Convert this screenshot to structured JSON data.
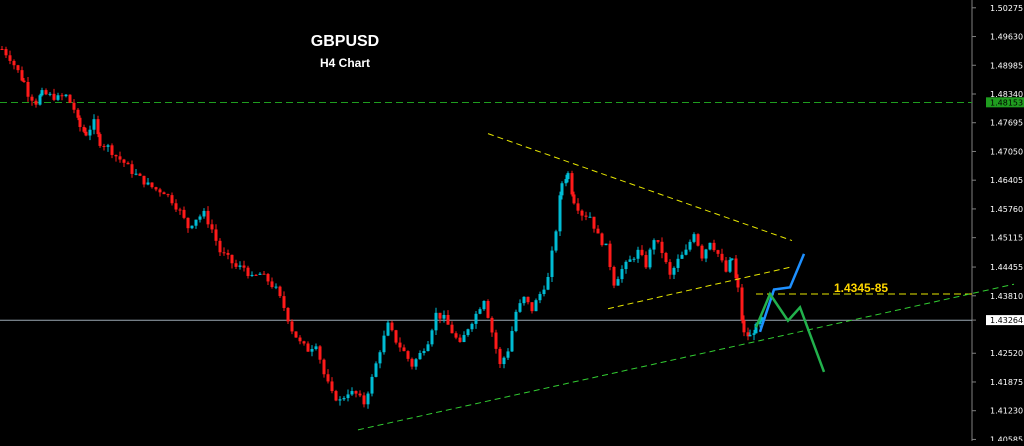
{
  "chart_data": {
    "type": "candlestick",
    "title": "GBPUSD",
    "subtitle": "H4 Chart",
    "symbol": "GBPUSD",
    "timeframe": "H4",
    "y_axis": {
      "position": "right",
      "tick_labels": [
        "1.50275",
        "1.49630",
        "1.48985",
        "1.48340",
        "1.47695",
        "1.47050",
        "1.46405",
        "1.45760",
        "1.45115",
        "1.44455",
        "1.43810",
        "1.43264",
        "1.42520",
        "1.41875",
        "1.41230",
        "1.40585"
      ],
      "ylim": [
        1.4055,
        1.5045
      ]
    },
    "grid": false,
    "current_price": "1.43264",
    "marked_level": "1.48153",
    "annotation": "1.4345-85",
    "colors": {
      "background": "#000000",
      "bull_candle": "#00bcd4",
      "bear_candle": "#ff1a1a",
      "triangle_lines": "#e6e600",
      "support_line": "#32cd32",
      "resistance_level": "#1f9d1f",
      "bullish_scenario": "#1e90ff",
      "bearish_scenario": "#22b14c",
      "annotation_text": "#ffd700",
      "axis_text": "#ffffff"
    },
    "series": [
      {
        "kind": "candles",
        "close_path": [
          [
            0,
            1.4935
          ],
          [
            8,
            1.4915
          ],
          [
            16,
            1.4885
          ],
          [
            22,
            1.486
          ],
          [
            26,
            1.4835
          ],
          [
            34,
            1.4815
          ],
          [
            40,
            1.4835
          ],
          [
            48,
            1.483
          ],
          [
            56,
            1.4825
          ],
          [
            64,
            1.483
          ],
          [
            72,
            1.48
          ],
          [
            78,
            1.476
          ],
          [
            84,
            1.4745
          ],
          [
            92,
            1.477
          ],
          [
            98,
            1.4725
          ],
          [
            106,
            1.4715
          ],
          [
            114,
            1.4695
          ],
          [
            122,
            1.468
          ],
          [
            130,
            1.466
          ],
          [
            138,
            1.4645
          ],
          [
            146,
            1.463
          ],
          [
            154,
            1.462
          ],
          [
            162,
            1.4615
          ],
          [
            170,
            1.4595
          ],
          [
            178,
            1.457
          ],
          [
            186,
            1.4535
          ],
          [
            194,
            1.4555
          ],
          [
            202,
            1.4565
          ],
          [
            210,
            1.453
          ],
          [
            218,
            1.448
          ],
          [
            226,
            1.4465
          ],
          [
            234,
            1.4445
          ],
          [
            242,
            1.4445
          ],
          [
            250,
            1.442
          ],
          [
            258,
            1.443
          ],
          [
            266,
            1.4415
          ],
          [
            274,
            1.4395
          ],
          [
            282,
            1.4355
          ],
          [
            290,
            1.4305
          ],
          [
            298,
            1.4275
          ],
          [
            306,
            1.426
          ],
          [
            314,
            1.4275
          ],
          [
            322,
            1.4205
          ],
          [
            330,
            1.416
          ],
          [
            338,
            1.4145
          ],
          [
            346,
            1.4165
          ],
          [
            354,
            1.416
          ],
          [
            362,
            1.414
          ],
          [
            370,
            1.4195
          ],
          [
            378,
            1.426
          ],
          [
            386,
            1.4315
          ],
          [
            394,
            1.428
          ],
          [
            402,
            1.4255
          ],
          [
            410,
            1.4225
          ],
          [
            418,
            1.425
          ],
          [
            426,
            1.428
          ],
          [
            434,
            1.434
          ],
          [
            442,
            1.433
          ],
          [
            450,
            1.43
          ],
          [
            458,
            1.427
          ],
          [
            466,
            1.431
          ],
          [
            474,
            1.434
          ],
          [
            482,
            1.4375
          ],
          [
            490,
            1.43
          ],
          [
            498,
            1.4225
          ],
          [
            506,
            1.426
          ],
          [
            514,
            1.4345
          ],
          [
            522,
            1.4375
          ],
          [
            530,
            1.435
          ],
          [
            538,
            1.4385
          ],
          [
            546,
            1.442
          ],
          [
            554,
            1.453
          ],
          [
            560,
            1.4635
          ],
          [
            566,
            1.4655
          ],
          [
            572,
            1.4595
          ],
          [
            580,
            1.4565
          ],
          [
            588,
            1.456
          ],
          [
            596,
            1.4515
          ],
          [
            604,
            1.449
          ],
          [
            612,
            1.441
          ],
          [
            620,
            1.444
          ],
          [
            628,
            1.446
          ],
          [
            636,
            1.448
          ],
          [
            644,
            1.445
          ],
          [
            652,
            1.451
          ],
          [
            660,
            1.448
          ],
          [
            668,
            1.4425
          ],
          [
            676,
            1.446
          ],
          [
            684,
            1.448
          ],
          [
            692,
            1.4525
          ],
          [
            700,
            1.447
          ],
          [
            708,
            1.4505
          ],
          [
            716,
            1.4475
          ],
          [
            724,
            1.4435
          ],
          [
            730,
            1.4465
          ],
          [
            736,
            1.4395
          ],
          [
            742,
            1.4295
          ],
          [
            748,
            1.429
          ],
          [
            754,
            1.431
          ],
          [
            760,
            1.4326
          ]
        ]
      }
    ],
    "annotations": [
      {
        "kind": "triangle_upper",
        "from": [
          488,
          1.4745
        ],
        "to": [
          792,
          1.4505
        ]
      },
      {
        "kind": "triangle_lower",
        "from": [
          608,
          1.4352
        ],
        "to": [
          790,
          1.4445
        ]
      },
      {
        "kind": "support",
        "from": [
          358,
          1.408
        ],
        "to": [
          1014,
          1.4407
        ]
      },
      {
        "kind": "level_1.4345-85",
        "from": [
          756,
          1.4385
        ],
        "to": [
          972,
          1.4385
        ]
      },
      {
        "kind": "level_1.48153",
        "from": [
          0,
          1.4815
        ],
        "to": [
          972,
          1.4815
        ]
      },
      {
        "kind": "current_price",
        "from": [
          0,
          1.4326
        ],
        "to": [
          972,
          1.4326
        ]
      }
    ],
    "scenarios": [
      {
        "kind": "bullish",
        "color": "#1e90ff",
        "path": [
          [
            760,
            1.43
          ],
          [
            774,
            1.4395
          ],
          [
            790,
            1.44
          ],
          [
            804,
            1.4475
          ]
        ]
      },
      {
        "kind": "bearish",
        "color": "#22b14c",
        "path": [
          [
            756,
            1.431
          ],
          [
            770,
            1.4385
          ],
          [
            788,
            1.4325
          ],
          [
            800,
            1.4355
          ],
          [
            824,
            1.421
          ]
        ]
      }
    ]
  }
}
